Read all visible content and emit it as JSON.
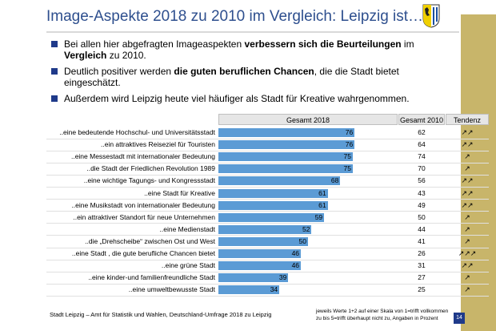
{
  "header": {
    "title": "Image-Aspekte 2018 zu 2010 im Vergleich: Leipzig ist….",
    "logo_icon": "leipzig-coat-of-arms-icon"
  },
  "bullets": [
    {
      "pre": "Bei allen hier abgefragten Imageaspekten ",
      "bold": "verbessern sich die Beurteilungen",
      "mid": " im ",
      "bold2": "Vergleich",
      "post": " zu 2010."
    },
    {
      "pre": "Deutlich positiver werden ",
      "bold": "die guten beruflichen Chancen",
      "mid": ", die die Stadt bietet eingeschätzt.",
      "bold2": "",
      "post": ""
    },
    {
      "pre": "Außerdem wird Leipzig heute viel häufiger als Stadt für Kreative wahrgenommen.",
      "bold": "",
      "mid": "",
      "bold2": "",
      "post": ""
    }
  ],
  "table": {
    "col_2018": "Gesamt 2018",
    "col_2010": "Gesamt 2010",
    "col_trend": "Tendenz"
  },
  "chart_data": {
    "type": "bar",
    "orientation": "horizontal",
    "xlim": [
      0,
      100
    ],
    "categories": [
      "..eine bedeutende Hochschul- und Universitätsstadt",
      "..ein attraktives Reiseziel für Touristen",
      "..eine Messestadt mit internationaler Bedeutung",
      "..die Stadt der Friedlichen Revolution 1989",
      "..eine wichtige Tagungs- und Kongressstadt",
      "..eine Stadt für Kreative",
      "..eine Musikstadt von internationaler Bedeutung",
      "..ein attraktiver Standort für neue Unternehmen",
      "..eine Medienstadt",
      "..die „Drehscheibe“ zwischen Ost und West",
      "..eine Stadt , die gute berufliche Chancen bietet",
      "..eine grüne Stadt",
      "..eine kinder-und familienfreundliche Stadt",
      "..eine umweltbewusste Stadt"
    ],
    "series": [
      {
        "name": "Gesamt 2018",
        "values": [
          76,
          76,
          75,
          75,
          68,
          61,
          61,
          59,
          52,
          50,
          46,
          46,
          39,
          34
        ],
        "color": "#5b9bd5"
      },
      {
        "name": "Gesamt 2010",
        "values": [
          62,
          64,
          74,
          70,
          56,
          43,
          49,
          50,
          44,
          41,
          26,
          31,
          27,
          25
        ]
      }
    ],
    "tendency": [
      "↗↗",
      "↗↗",
      "↗",
      "↗",
      "↗↗",
      "↗↗",
      "↗↗",
      "↗",
      "↗",
      "↗",
      "↗↗↗",
      "↗↗",
      "↗",
      "↗"
    ]
  },
  "footer": {
    "source": "Stadt Leipzig – Amt für Statistik und Wahlen, Deutschland-Umfrage 2018 zu Leipzig",
    "note_line1": "jeweils Werte 1+2 auf einer Skala von 1=trifft vollkommen",
    "note_line2": "zu bis 5=trifft überhaupt nicht zu, Angaben in Prozent",
    "page": "14"
  }
}
